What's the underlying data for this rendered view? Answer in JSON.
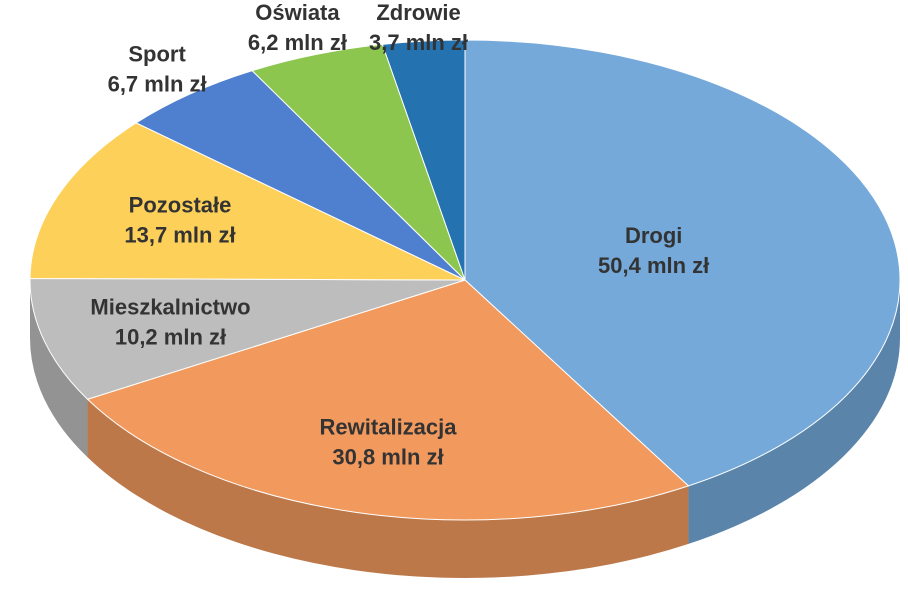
{
  "chart_data": {
    "type": "pie3d",
    "categories": [
      "Drogi",
      "Rewitalizacja",
      "Mieszkalnictwo",
      "Pozostałe",
      "Sport",
      "Oświata",
      "Zdrowie"
    ],
    "values": [
      50.4,
      30.8,
      10.2,
      13.7,
      6.7,
      6.2,
      3.7
    ],
    "value_labels": [
      "50,4 mln zł",
      "30,8 mln zł",
      "10,2 mln zł",
      "13,7 mln zł",
      "6,7 mln zł",
      "6,2 mln zł",
      "3,7 mln zł"
    ],
    "colors": [
      "#74a9da",
      "#f29a5e",
      "#bdbdbd",
      "#fdd05a",
      "#4f7fcf",
      "#8cc64e",
      "#2472b0"
    ]
  }
}
